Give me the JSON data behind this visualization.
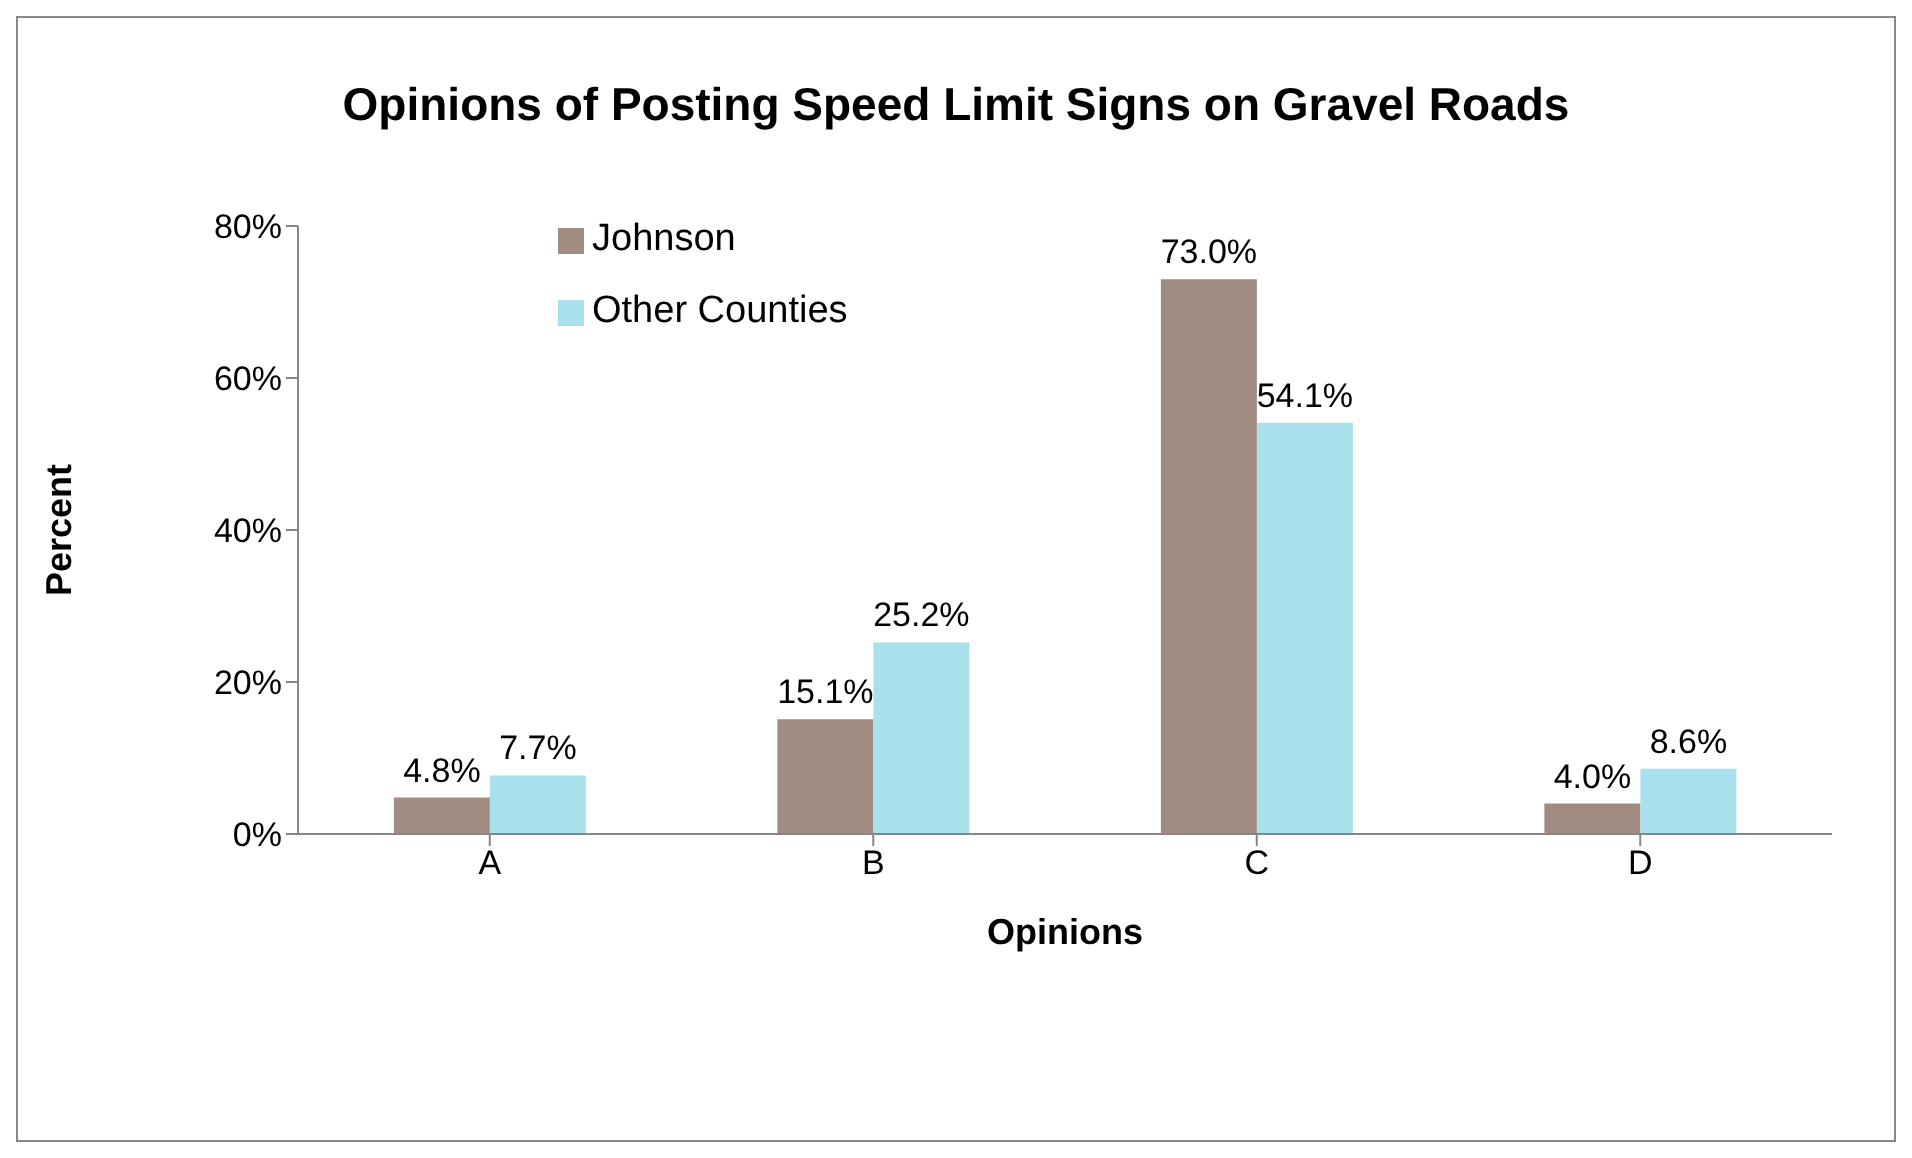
{
  "chart_data": {
    "type": "bar",
    "title": "Opinions of Posting Speed Limit Signs on Gravel Roads",
    "xlabel": "Opinions",
    "ylabel": "Percent",
    "categories": [
      "A",
      "B",
      "C",
      "D"
    ],
    "series": [
      {
        "name": "Johnson",
        "color": "#a08c80",
        "values": [
          4.8,
          15.1,
          73.0,
          4.0
        ],
        "value_labels": [
          "4.8%",
          "15.1%",
          "73.0%",
          "4.0%"
        ]
      },
      {
        "name": "Other Counties",
        "color": "#a8e0ec",
        "values": [
          7.7,
          25.2,
          54.1,
          8.6
        ],
        "value_labels": [
          "7.7%",
          "25.2%",
          "54.1%",
          "8.6%"
        ]
      }
    ],
    "ylim": [
      0,
      80
    ],
    "yticks": [
      {
        "value": 0,
        "label": "0%"
      },
      {
        "value": 20,
        "label": "20%"
      },
      {
        "value": 40,
        "label": "40%"
      },
      {
        "value": 60,
        "label": "60%"
      },
      {
        "value": 80,
        "label": "80%"
      }
    ],
    "grid": false,
    "legend": "top left"
  }
}
